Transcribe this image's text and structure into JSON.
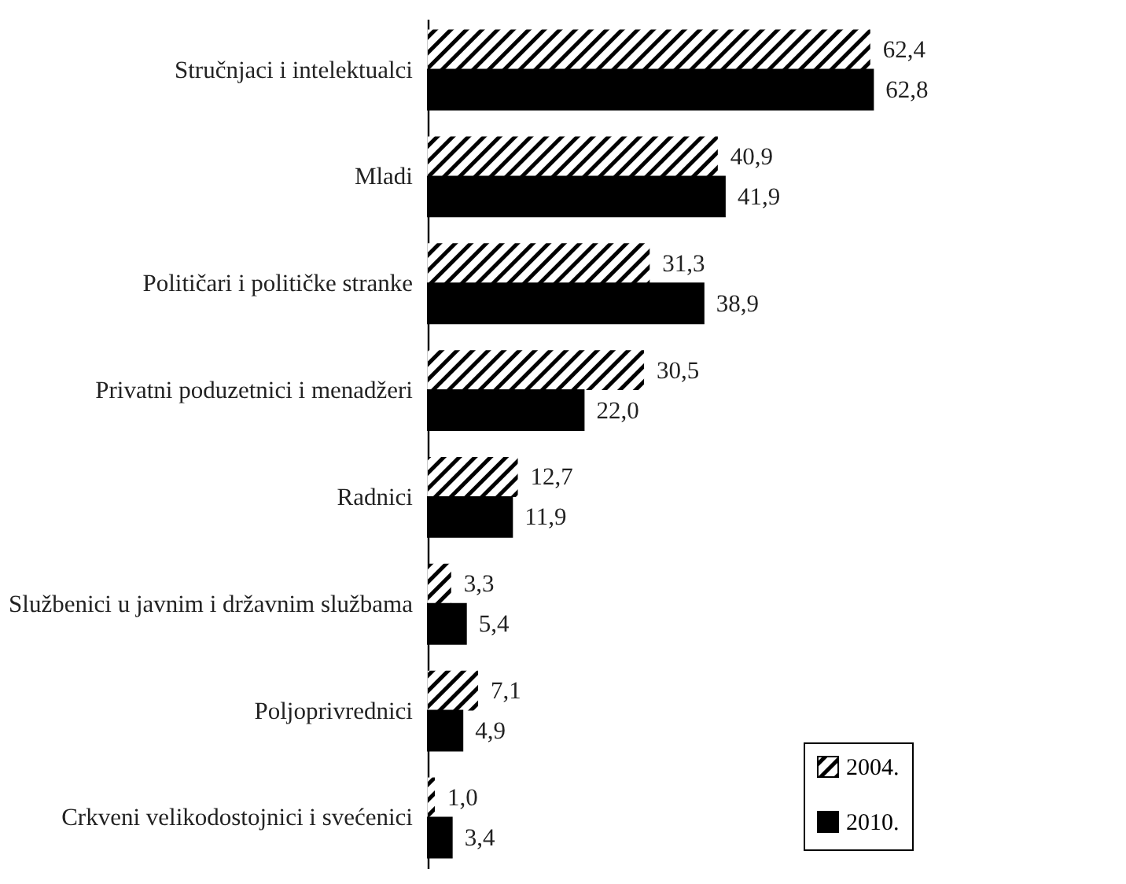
{
  "chart_data": {
    "type": "bar",
    "orientation": "horizontal",
    "categories": [
      "Stručnjaci i intelektualci",
      "Mladi",
      "Političari i političke stranke",
      "Privatni poduzetnici i menadžeri",
      "Radnici",
      "Službenici u javnim i državnim službama",
      "Poljoprivrednici",
      "Crkveni velikodostojnici i svećenici"
    ],
    "series": [
      {
        "name": "2004.",
        "color": "#ffffff",
        "values": [
          62.4,
          40.9,
          31.3,
          30.5,
          12.7,
          3.3,
          7.1,
          1.0
        ],
        "value_labels": [
          "62,4",
          "40,9",
          "31,3",
          "30,5",
          "12,7",
          "3,3",
          "7,1",
          "1,0"
        ]
      },
      {
        "name": "2010.",
        "color": "#000000",
        "values": [
          62.8,
          41.9,
          38.9,
          22.0,
          11.9,
          5.4,
          4.9,
          3.4
        ],
        "value_labels": [
          "62,8",
          "41,9",
          "38,9",
          "22,0",
          "11,9",
          "5,4",
          "4,9",
          "3,4"
        ]
      }
    ],
    "legend": "bottom right"
  }
}
